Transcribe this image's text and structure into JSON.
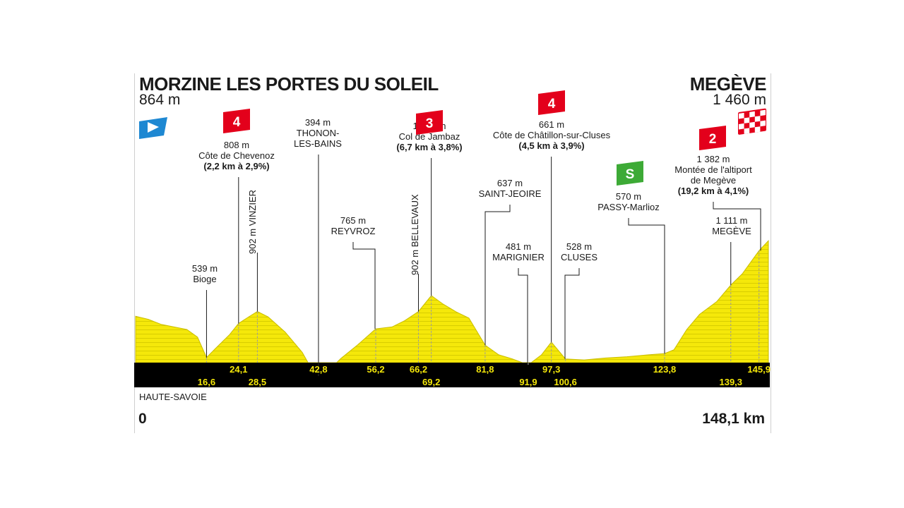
{
  "stage": {
    "start": {
      "name": "MORZINE LES PORTES DU SOLEIL",
      "altitude": "864 m"
    },
    "finish": {
      "name": "MEGÈVE",
      "altitude": "1 460 m"
    },
    "region": "HAUTE-SAVOIE",
    "km_start": "0",
    "km_end": "148,1 km"
  },
  "colors": {
    "profile_fill": "#f5e80a",
    "profile_stripe": "#d8cd00",
    "km_band": "#000000",
    "km_text": "#f5e80a",
    "climb_badge": "#e3001b",
    "sprint_badge": "#3daa36",
    "start_flag": "#1e88d2"
  },
  "chart_data": {
    "type": "area",
    "x_unit": "km",
    "y_unit": "m",
    "xlim": [
      0,
      148.1
    ],
    "ylim": [
      0,
      1460
    ],
    "profile": [
      [
        0,
        864
      ],
      [
        3,
        840
      ],
      [
        6,
        800
      ],
      [
        9,
        780
      ],
      [
        12,
        760
      ],
      [
        14.5,
        700
      ],
      [
        16.6,
        539
      ],
      [
        19,
        620
      ],
      [
        22,
        720
      ],
      [
        24.1,
        808
      ],
      [
        26.5,
        860
      ],
      [
        28.5,
        902
      ],
      [
        31,
        860
      ],
      [
        35,
        740
      ],
      [
        39,
        580
      ],
      [
        41.5,
        430
      ],
      [
        42.8,
        394
      ],
      [
        45,
        430
      ],
      [
        48,
        530
      ],
      [
        52,
        640
      ],
      [
        56.2,
        765
      ],
      [
        60,
        780
      ],
      [
        63,
        830
      ],
      [
        66.2,
        902
      ],
      [
        69.2,
        1028
      ],
      [
        72,
        960
      ],
      [
        75,
        900
      ],
      [
        78,
        850
      ],
      [
        81.8,
        637
      ],
      [
        85,
        560
      ],
      [
        88,
        530
      ],
      [
        91.9,
        481
      ],
      [
        95,
        560
      ],
      [
        97.3,
        661
      ],
      [
        100.6,
        528
      ],
      [
        105,
        520
      ],
      [
        110,
        535
      ],
      [
        115,
        545
      ],
      [
        120,
        560
      ],
      [
        123.8,
        570
      ],
      [
        126,
        600
      ],
      [
        129,
        760
      ],
      [
        132,
        880
      ],
      [
        136,
        980
      ],
      [
        139.3,
        1111
      ],
      [
        142,
        1200
      ],
      [
        145.9,
        1382
      ],
      [
        148.1,
        1460
      ]
    ],
    "km_markers": [
      {
        "km": 16.6,
        "label": "16,6",
        "row": 2
      },
      {
        "km": 24.1,
        "label": "24,1",
        "row": 1
      },
      {
        "km": 28.5,
        "label": "28,5",
        "row": 2
      },
      {
        "km": 42.8,
        "label": "42,8",
        "row": 1
      },
      {
        "km": 56.2,
        "label": "56,2",
        "row": 1
      },
      {
        "km": 66.2,
        "label": "66,2",
        "row": 1
      },
      {
        "km": 69.2,
        "label": "69,2",
        "row": 2
      },
      {
        "km": 81.8,
        "label": "81,8",
        "row": 1
      },
      {
        "km": 91.9,
        "label": "91,9",
        "row": 2
      },
      {
        "km": 97.3,
        "label": "97,3",
        "row": 1
      },
      {
        "km": 100.6,
        "label": "100,6",
        "row": 2
      },
      {
        "km": 123.8,
        "label": "123,8",
        "row": 1
      },
      {
        "km": 139.3,
        "label": "139,3",
        "row": 2
      },
      {
        "km": 145.9,
        "label": "145,9",
        "row": 1
      }
    ],
    "waypoints": [
      {
        "km": 16.6,
        "lines": [
          "539 m",
          "Bioge"
        ]
      },
      {
        "km": 24.1,
        "category": "4",
        "lines": [
          "808 m",
          "Côte de Chevenoz",
          "(2,2 km à 2,9%)"
        ]
      },
      {
        "km": 28.5,
        "vertical": "902 m VINZIER"
      },
      {
        "km": 42.8,
        "lines": [
          "394 m",
          "THONON-",
          "LES-BAINS"
        ]
      },
      {
        "km": 56.2,
        "lines": [
          "765 m",
          "REYVROZ"
        ]
      },
      {
        "km": 66.2,
        "vertical": "902 m BELLEVAUX"
      },
      {
        "km": 69.2,
        "category": "3",
        "lines": [
          "1 028 m",
          "Col de Jambaz",
          "(6,7 km à 3,8%)"
        ]
      },
      {
        "km": 81.8,
        "lines": [
          "637 m",
          "SAINT-JEOIRE"
        ]
      },
      {
        "km": 91.9,
        "lines": [
          "481 m",
          "MARIGNIER"
        ]
      },
      {
        "km": 97.3,
        "category": "4",
        "lines": [
          "661 m",
          "Côte de Châtillon-sur-Cluses",
          "(4,5 km à 3,9%)"
        ]
      },
      {
        "km": 100.6,
        "lines": [
          "528 m",
          "CLUSES"
        ]
      },
      {
        "km": 123.8,
        "sprint": "S",
        "lines": [
          "570 m",
          "PASSY-Marlioz"
        ]
      },
      {
        "km": 139.3,
        "lines": [
          "1 111 m",
          "MEGÈVE"
        ]
      },
      {
        "km": 145.9,
        "category": "2",
        "lines": [
          "1 382 m",
          "Montée de l'altiport",
          "de Megève",
          "(19,2 km à 4,1%)"
        ]
      }
    ]
  }
}
